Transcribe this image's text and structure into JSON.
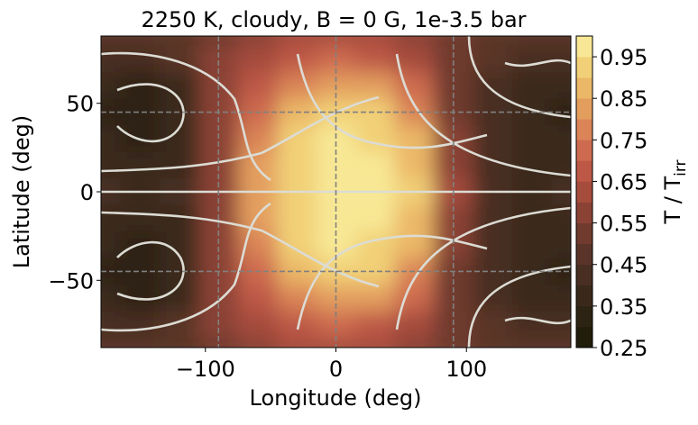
{
  "chart_data": {
    "type": "contour",
    "title": "2250 K, cloudy, B = 0 G, 1e-3.5 bar",
    "x_label": "Longitude (deg)",
    "y_label": "Latitude (deg)",
    "cbar_label": "T / T",
    "cbar_label_sub": "irr",
    "xlim": [
      -180,
      180
    ],
    "ylim": [
      -88,
      88
    ],
    "xticks": [
      {
        "value": -100,
        "label": "−100"
      },
      0,
      100
    ],
    "yticks": [
      {
        "value": -50,
        "label": "−50"
      },
      0,
      50
    ],
    "reference_x": [
      -90,
      0,
      90
    ],
    "reference_y": [
      -45,
      45
    ],
    "x": [
      -180,
      -150,
      -120,
      -90,
      -60,
      -30,
      0,
      30,
      60,
      90,
      120,
      150,
      180
    ],
    "y": [
      90,
      75,
      60,
      45,
      30,
      15,
      0,
      -15,
      -30,
      -45,
      -60,
      -75,
      -90
    ],
    "z": [
      [
        0.45,
        0.45,
        0.48,
        0.52,
        0.58,
        0.62,
        0.62,
        0.6,
        0.56,
        0.5,
        0.47,
        0.45,
        0.45
      ],
      [
        0.42,
        0.42,
        0.45,
        0.55,
        0.62,
        0.68,
        0.7,
        0.68,
        0.62,
        0.5,
        0.45,
        0.42,
        0.42
      ],
      [
        0.35,
        0.33,
        0.38,
        0.55,
        0.68,
        0.78,
        0.82,
        0.8,
        0.7,
        0.5,
        0.42,
        0.38,
        0.35
      ],
      [
        0.33,
        0.3,
        0.35,
        0.55,
        0.72,
        0.88,
        0.92,
        0.9,
        0.78,
        0.52,
        0.4,
        0.35,
        0.33
      ],
      [
        0.35,
        0.32,
        0.36,
        0.55,
        0.78,
        0.92,
        0.95,
        0.93,
        0.85,
        0.55,
        0.4,
        0.36,
        0.35
      ],
      [
        0.38,
        0.35,
        0.38,
        0.55,
        0.8,
        0.93,
        0.95,
        0.95,
        0.88,
        0.58,
        0.4,
        0.37,
        0.38
      ],
      [
        0.4,
        0.38,
        0.4,
        0.55,
        0.8,
        0.92,
        0.95,
        0.95,
        0.9,
        0.6,
        0.4,
        0.38,
        0.4
      ],
      [
        0.38,
        0.35,
        0.38,
        0.55,
        0.8,
        0.93,
        0.95,
        0.95,
        0.88,
        0.58,
        0.4,
        0.37,
        0.38
      ],
      [
        0.35,
        0.32,
        0.36,
        0.55,
        0.78,
        0.92,
        0.95,
        0.93,
        0.85,
        0.55,
        0.4,
        0.36,
        0.35
      ],
      [
        0.33,
        0.3,
        0.35,
        0.55,
        0.72,
        0.88,
        0.92,
        0.9,
        0.78,
        0.52,
        0.4,
        0.35,
        0.33
      ],
      [
        0.35,
        0.33,
        0.38,
        0.55,
        0.68,
        0.78,
        0.82,
        0.8,
        0.7,
        0.5,
        0.42,
        0.38,
        0.35
      ],
      [
        0.42,
        0.42,
        0.45,
        0.55,
        0.62,
        0.68,
        0.7,
        0.68,
        0.62,
        0.5,
        0.45,
        0.42,
        0.42
      ],
      [
        0.45,
        0.45,
        0.48,
        0.52,
        0.58,
        0.62,
        0.62,
        0.6,
        0.56,
        0.5,
        0.47,
        0.45,
        0.45
      ]
    ],
    "levels": [
      0.25,
      0.3,
      0.35,
      0.4,
      0.45,
      0.5,
      0.55,
      0.6,
      0.65,
      0.7,
      0.75,
      0.8,
      0.85,
      0.9,
      0.95,
      1.0
    ],
    "colors": [
      "#211d0b",
      "#2d2314",
      "#3a291b",
      "#492f22",
      "#5a3428",
      "#703a2e",
      "#8a4235",
      "#a54c3d",
      "#bd5846",
      "#cd6a4f",
      "#da8457",
      "#e39e5e",
      "#ebb867",
      "#f1d077",
      "#f8e895"
    ],
    "cbar_lim": [
      0.25,
      1.0
    ],
    "cbar_ticks": [
      0.25,
      0.35,
      0.45,
      0.55,
      0.65,
      0.75,
      0.85,
      0.95
    ]
  }
}
